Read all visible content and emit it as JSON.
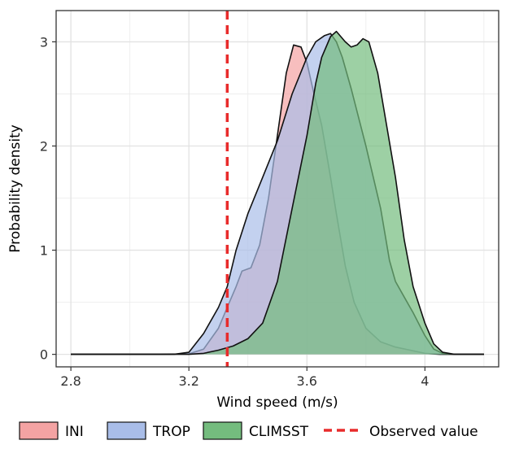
{
  "chart_data": {
    "type": "area",
    "xlabel": "Wind speed (m/s)",
    "ylabel": "Probability density",
    "xlim": [
      2.75,
      4.25
    ],
    "ylim": [
      -0.12,
      3.3
    ],
    "xticks": [
      2.8,
      3.2,
      3.6,
      4.0
    ],
    "xtick_labels": [
      "2.8",
      "3.2",
      "3.6",
      "4"
    ],
    "yticks": [
      0,
      1,
      2,
      3
    ],
    "ytick_labels": [
      "0",
      "1",
      "2",
      "3"
    ],
    "grid": true,
    "legend_position": "bottom",
    "series": [
      {
        "name": "INI",
        "color": "#f4a3a3",
        "points": [
          [
            2.8,
            0
          ],
          [
            3.1,
            0
          ],
          [
            3.2,
            0.005
          ],
          [
            3.25,
            0.05
          ],
          [
            3.3,
            0.25
          ],
          [
            3.33,
            0.45
          ],
          [
            3.36,
            0.65
          ],
          [
            3.38,
            0.8
          ],
          [
            3.41,
            0.83
          ],
          [
            3.44,
            1.05
          ],
          [
            3.47,
            1.5
          ],
          [
            3.5,
            2.1
          ],
          [
            3.53,
            2.7
          ],
          [
            3.555,
            2.97
          ],
          [
            3.58,
            2.95
          ],
          [
            3.6,
            2.8
          ],
          [
            3.62,
            2.55
          ],
          [
            3.65,
            2.2
          ],
          [
            3.68,
            1.7
          ],
          [
            3.7,
            1.35
          ],
          [
            3.73,
            0.85
          ],
          [
            3.76,
            0.5
          ],
          [
            3.8,
            0.25
          ],
          [
            3.85,
            0.12
          ],
          [
            3.9,
            0.07
          ],
          [
            3.95,
            0.04
          ],
          [
            4.0,
            0.01
          ],
          [
            4.05,
            0
          ],
          [
            4.2,
            0
          ]
        ]
      },
      {
        "name": "TROP",
        "color": "#a9bde8",
        "points": [
          [
            2.8,
            0
          ],
          [
            3.15,
            0
          ],
          [
            3.2,
            0.02
          ],
          [
            3.25,
            0.2
          ],
          [
            3.3,
            0.45
          ],
          [
            3.33,
            0.65
          ],
          [
            3.36,
            1.0
          ],
          [
            3.4,
            1.35
          ],
          [
            3.45,
            1.7
          ],
          [
            3.5,
            2.05
          ],
          [
            3.55,
            2.5
          ],
          [
            3.6,
            2.85
          ],
          [
            3.63,
            3.0
          ],
          [
            3.66,
            3.06
          ],
          [
            3.68,
            3.08
          ],
          [
            3.7,
            3.0
          ],
          [
            3.72,
            2.85
          ],
          [
            3.75,
            2.55
          ],
          [
            3.8,
            2.0
          ],
          [
            3.85,
            1.4
          ],
          [
            3.88,
            0.9
          ],
          [
            3.9,
            0.7
          ],
          [
            3.93,
            0.55
          ],
          [
            3.96,
            0.4
          ],
          [
            4.0,
            0.18
          ],
          [
            4.03,
            0.05
          ],
          [
            4.06,
            0.01
          ],
          [
            4.1,
            0
          ],
          [
            4.2,
            0
          ]
        ]
      },
      {
        "name": "CLIMSST",
        "color": "#74bc7e",
        "points": [
          [
            2.8,
            0
          ],
          [
            3.2,
            0
          ],
          [
            3.25,
            0.01
          ],
          [
            3.3,
            0.04
          ],
          [
            3.35,
            0.08
          ],
          [
            3.4,
            0.15
          ],
          [
            3.45,
            0.3
          ],
          [
            3.5,
            0.7
          ],
          [
            3.55,
            1.4
          ],
          [
            3.6,
            2.1
          ],
          [
            3.63,
            2.6
          ],
          [
            3.65,
            2.85
          ],
          [
            3.68,
            3.05
          ],
          [
            3.7,
            3.1
          ],
          [
            3.73,
            3.0
          ],
          [
            3.75,
            2.95
          ],
          [
            3.77,
            2.97
          ],
          [
            3.79,
            3.03
          ],
          [
            3.81,
            3.0
          ],
          [
            3.84,
            2.7
          ],
          [
            3.87,
            2.2
          ],
          [
            3.9,
            1.7
          ],
          [
            3.93,
            1.1
          ],
          [
            3.96,
            0.65
          ],
          [
            4.0,
            0.3
          ],
          [
            4.03,
            0.1
          ],
          [
            4.06,
            0.02
          ],
          [
            4.1,
            0
          ],
          [
            4.2,
            0
          ]
        ]
      }
    ],
    "reference_lines": [
      {
        "name": "Observed value",
        "x": 3.33,
        "color": "#e82b2b",
        "style": "dashed"
      }
    ]
  }
}
